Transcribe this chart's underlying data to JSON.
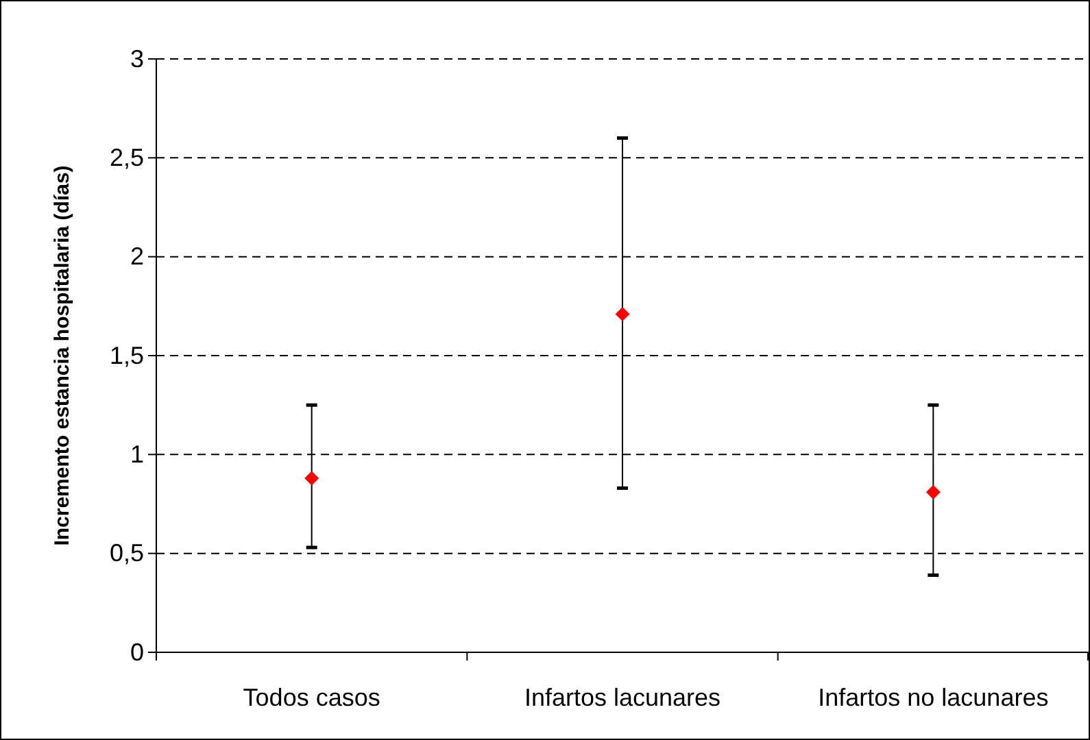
{
  "chart_data": {
    "type": "scatter",
    "ylabel": "Incremento estancia hospitalaria (días)",
    "categories": [
      "Todos casos",
      "Infartos lacunares",
      "Infartos no lacunares"
    ],
    "series": [
      {
        "color": "#ff0000",
        "values": [
          0.88,
          1.71,
          0.81
        ],
        "errors": [
          [
            0.53,
            1.25
          ],
          [
            0.83,
            2.6
          ],
          [
            0.39,
            1.25
          ]
        ]
      }
    ],
    "ylim": [
      0,
      3
    ],
    "yticks": [
      0,
      {
        "value": 0.5,
        "label": "0,5"
      },
      1,
      {
        "value": 1.5,
        "label": "1,5"
      },
      2,
      {
        "value": 2.5,
        "label": "2,5"
      },
      3
    ],
    "grid": "y",
    "marker": "diamond"
  }
}
